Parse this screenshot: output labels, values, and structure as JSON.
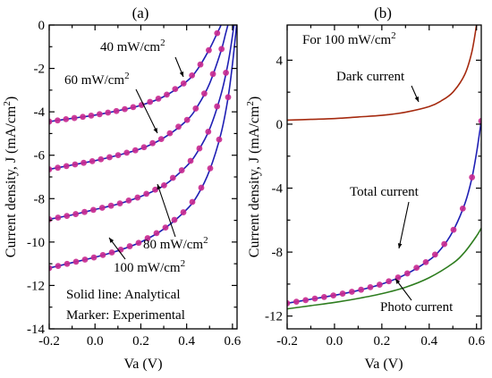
{
  "chart_data": [
    {
      "type": "line",
      "panel_label": "(a)",
      "xlabel": "Va (V)",
      "ylabel": "Current density, J (mA/cm",
      "ylabel_sup": "2",
      "ylabel_close": ")",
      "xlim": [
        -0.2,
        0.62
      ],
      "ylim": [
        -14,
        0
      ],
      "xticks": [
        -0.2,
        0.0,
        0.2,
        0.4,
        0.6
      ],
      "xtick_labels": [
        "-0.2",
        "0.0",
        "0.2",
        "0.4",
        "0.6"
      ],
      "yticks": [
        0,
        -2,
        -4,
        -6,
        -8,
        -10,
        -12,
        -14
      ],
      "ytick_labels": [
        "0",
        "-2",
        "-4",
        "-6",
        "-8",
        "-10",
        "-12",
        "-14"
      ],
      "note_lines": [
        "Solid line: Analytical",
        "Marker: Experimental"
      ],
      "series": [
        {
          "label": "40 mW/cm",
          "label_sup": "2",
          "line_color": "#1f1fb4",
          "marker_color": "#c8288f",
          "x": [
            -0.2,
            -0.1,
            0.0,
            0.1,
            0.2,
            0.3,
            0.4,
            0.45,
            0.5,
            0.53,
            0.55,
            0.57
          ],
          "y": [
            -4.45,
            -4.3,
            -4.15,
            -3.95,
            -3.7,
            -3.3,
            -2.6,
            -2.0,
            -1.1,
            -0.45,
            0.0,
            0.6
          ]
        },
        {
          "label": "60 mW/cm",
          "label_sup": "2",
          "line_color": "#1f1fb4",
          "marker_color": "#c8288f",
          "x": [
            -0.2,
            -0.1,
            0.0,
            0.1,
            0.2,
            0.3,
            0.4,
            0.45,
            0.5,
            0.55,
            0.57,
            0.59
          ],
          "y": [
            -6.65,
            -6.45,
            -6.25,
            -6.0,
            -5.7,
            -5.2,
            -4.4,
            -3.7,
            -2.7,
            -1.2,
            -0.4,
            0.4
          ]
        },
        {
          "label": "80 mW/cm",
          "label_sup": "2",
          "line_color": "#1f1fb4",
          "marker_color": "#c8288f",
          "x": [
            -0.2,
            -0.1,
            0.0,
            0.1,
            0.2,
            0.3,
            0.4,
            0.45,
            0.5,
            0.55,
            0.58,
            0.6,
            0.61
          ],
          "y": [
            -8.95,
            -8.75,
            -8.5,
            -8.25,
            -7.9,
            -7.4,
            -6.5,
            -5.8,
            -4.8,
            -3.2,
            -1.8,
            -0.5,
            0.3
          ]
        },
        {
          "label": "100 mW/cm",
          "label_sup": "2",
          "line_color": "#1f1fb4",
          "marker_color": "#c8288f",
          "x": [
            -0.2,
            -0.1,
            0.0,
            0.1,
            0.2,
            0.3,
            0.4,
            0.45,
            0.5,
            0.55,
            0.58,
            0.6,
            0.62
          ],
          "y": [
            -11.2,
            -10.95,
            -10.7,
            -10.4,
            -10.0,
            -9.4,
            -8.5,
            -7.8,
            -6.7,
            -5.0,
            -3.4,
            -1.8,
            0.2
          ]
        }
      ],
      "annotation_labels": [
        "40 mW/cm",
        "60 mW/cm",
        "80 mW/cm",
        "100 mW/cm"
      ]
    },
    {
      "type": "line",
      "panel_label": "(b)",
      "xlabel": "Va (V)",
      "ylabel": "Current density, J (mA/cm",
      "ylabel_sup": "2",
      "ylabel_close": ")",
      "xlim": [
        -0.2,
        0.62
      ],
      "ylim": [
        -12.8,
        6.2
      ],
      "xticks": [
        -0.2,
        0.0,
        0.2,
        0.4,
        0.6
      ],
      "xtick_labels": [
        "-0.2",
        "0.0",
        "0.2",
        "0.4",
        "0.6"
      ],
      "yticks": [
        4,
        0,
        -4,
        -8,
        -12
      ],
      "ytick_labels": [
        "4",
        "0",
        "-4",
        "-8",
        "-12"
      ],
      "header_text": "For 100 mW/cm",
      "header_sup": "2",
      "series": [
        {
          "name": "Dark current",
          "line_color": "#a52a0f",
          "x": [
            -0.2,
            -0.1,
            0.0,
            0.1,
            0.2,
            0.3,
            0.4,
            0.45,
            0.5,
            0.55,
            0.58,
            0.6
          ],
          "y": [
            0.25,
            0.3,
            0.35,
            0.45,
            0.55,
            0.75,
            1.1,
            1.45,
            2.0,
            3.1,
            4.5,
            6.2
          ]
        },
        {
          "name": "Total current",
          "line_color": "#1f1fb4",
          "marker_color": "#c8288f",
          "x": [
            -0.2,
            -0.1,
            0.0,
            0.1,
            0.2,
            0.3,
            0.4,
            0.45,
            0.5,
            0.55,
            0.58,
            0.6,
            0.62
          ],
          "y": [
            -11.2,
            -10.95,
            -10.7,
            -10.4,
            -10.0,
            -9.4,
            -8.5,
            -7.8,
            -6.7,
            -5.0,
            -3.4,
            -1.8,
            0.2
          ]
        },
        {
          "name": "Photo current",
          "line_color": "#2e7d1f",
          "x": [
            -0.2,
            -0.1,
            0.0,
            0.1,
            0.2,
            0.3,
            0.4,
            0.5,
            0.55,
            0.6,
            0.62
          ],
          "y": [
            -11.55,
            -11.35,
            -11.15,
            -10.9,
            -10.6,
            -10.2,
            -9.6,
            -8.7,
            -8.0,
            -7.0,
            -6.5
          ]
        }
      ],
      "annotation_labels": [
        "Dark current",
        "Total current",
        "Photo current"
      ]
    }
  ]
}
